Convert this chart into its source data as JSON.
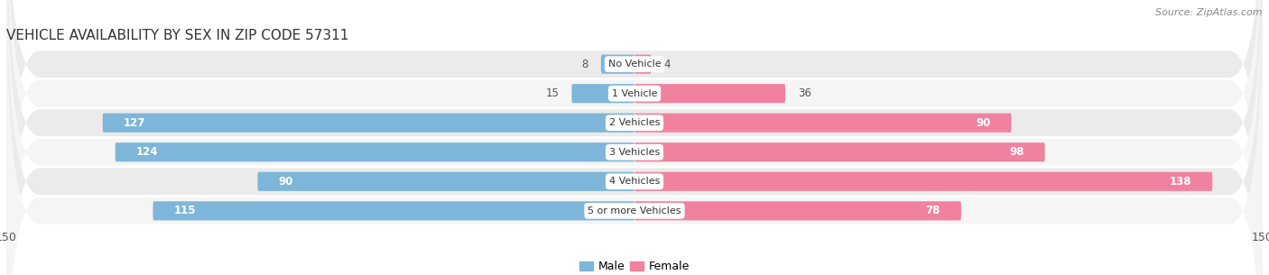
{
  "title": "VEHICLE AVAILABILITY BY SEX IN ZIP CODE 57311",
  "source_text": "Source: ZipAtlas.com",
  "categories": [
    "No Vehicle",
    "1 Vehicle",
    "2 Vehicles",
    "3 Vehicles",
    "4 Vehicles",
    "5 or more Vehicles"
  ],
  "male_values": [
    8,
    15,
    127,
    124,
    90,
    115
  ],
  "female_values": [
    4,
    36,
    90,
    98,
    138,
    78
  ],
  "male_color": "#7EB6D9",
  "female_color": "#F082A0",
  "row_bg_even": "#EBEBEB",
  "row_bg_odd": "#F5F5F5",
  "xlim": 150,
  "bar_height": 0.65,
  "title_fontsize": 11,
  "source_fontsize": 8,
  "label_fontsize": 8.5,
  "tick_fontsize": 9,
  "category_fontsize": 8,
  "figsize": [
    14.06,
    3.05
  ],
  "dpi": 100
}
